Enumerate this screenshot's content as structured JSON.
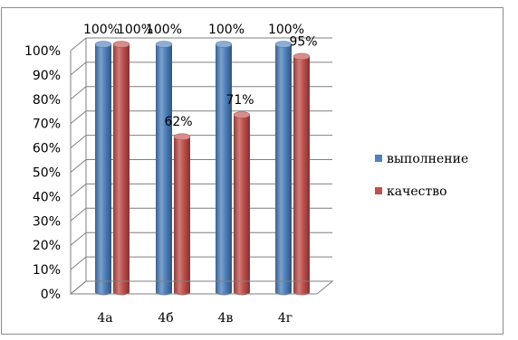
{
  "chart_data": {
    "type": "bar",
    "categories": [
      "4а",
      "4б",
      "4в",
      "4г"
    ],
    "series": [
      {
        "name": "выполнение",
        "values": [
          100,
          100,
          100,
          100
        ],
        "labels": [
          "100%",
          "100%",
          "100%",
          "100%"
        ],
        "color": "#4f81bd"
      },
      {
        "name": "качество",
        "values": [
          100,
          62,
          71,
          95
        ],
        "labels": [
          "100%",
          "62%",
          "71%",
          "95%"
        ],
        "color": "#c0504d"
      }
    ],
    "y_ticks": [
      "0%",
      "10%",
      "20%",
      "30%",
      "40%",
      "50%",
      "60%",
      "70%",
      "80%",
      "90%",
      "100%"
    ],
    "ylim": [
      0,
      100
    ],
    "grid": true,
    "legend_position": "right",
    "title": "",
    "xlabel": "",
    "ylabel": ""
  }
}
